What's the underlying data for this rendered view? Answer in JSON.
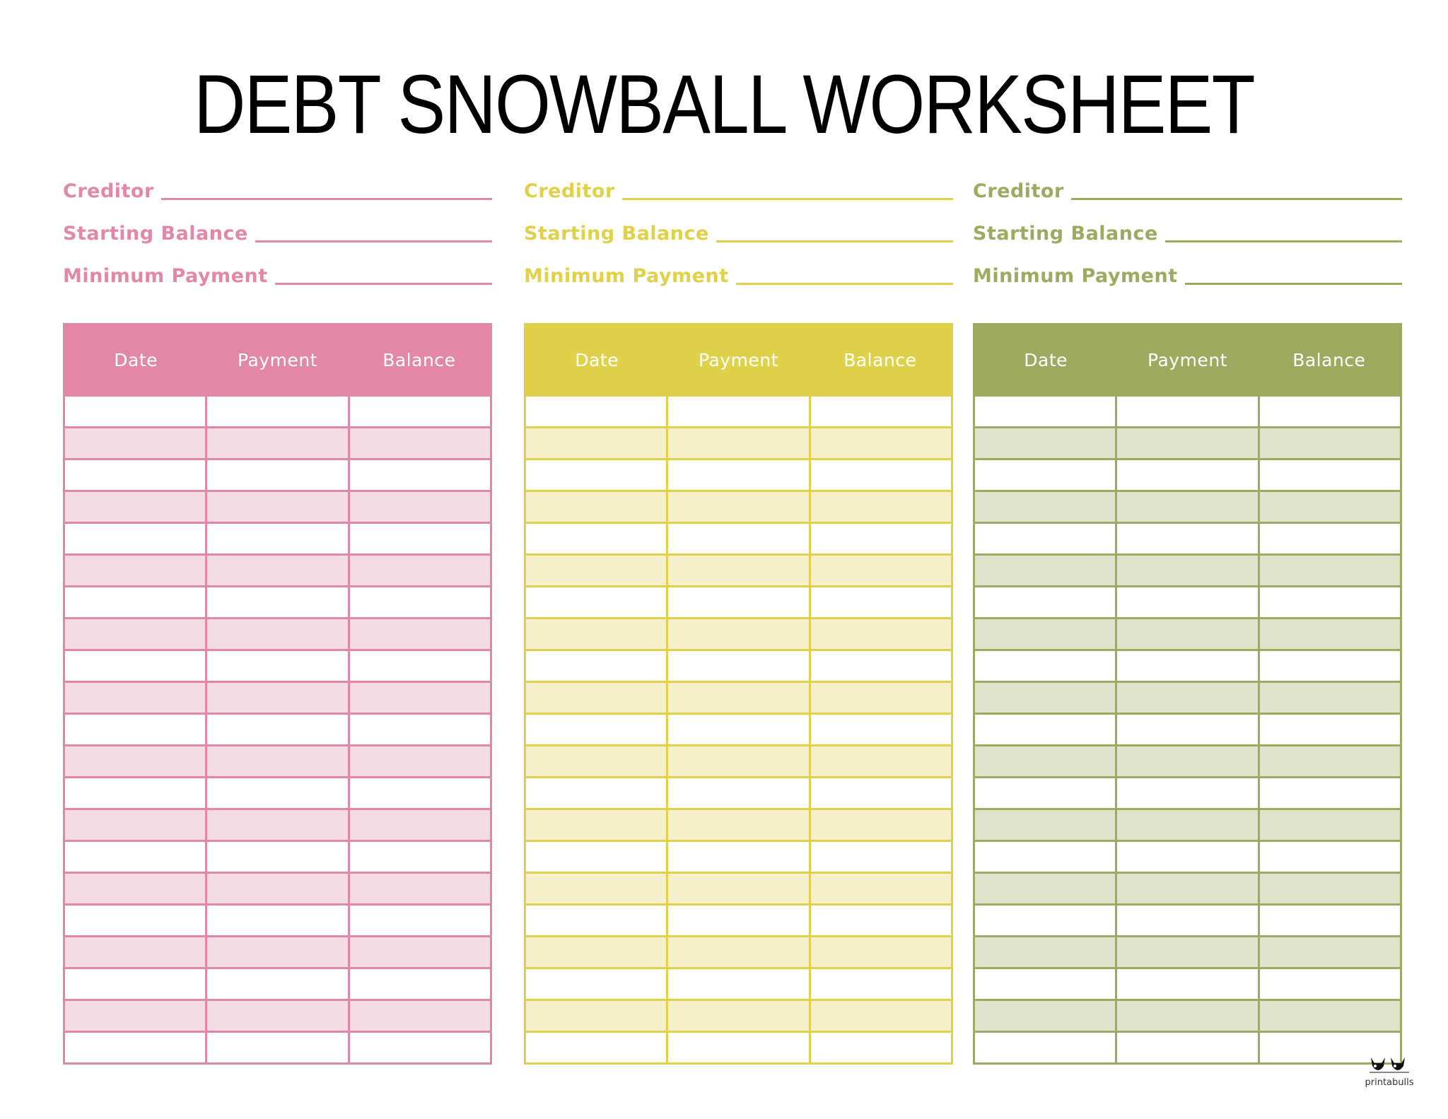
{
  "title": "DEBT SNOWBALL WORKSHEET",
  "panels": [
    {
      "color": "#e288a6",
      "shade": "#f5dbe3",
      "creditor": "Creditor",
      "starting_balance": "Starting Balance",
      "minimum_payment": "Minimum Payment",
      "columns": [
        "Date",
        "Payment",
        "Balance"
      ]
    },
    {
      "color": "#e0d14b",
      "shade": "#f5efcc",
      "creditor": "Creditor",
      "starting_balance": "Starting Balance",
      "minimum_payment": "Minimum Payment",
      "columns": [
        "Date",
        "Payment",
        "Balance"
      ]
    },
    {
      "color": "#9daa60",
      "shade": "#e0e3cc",
      "creditor": "Creditor",
      "starting_balance": "Starting Balance",
      "minimum_payment": "Minimum Payment",
      "columns": [
        "Date",
        "Payment",
        "Balance"
      ]
    }
  ],
  "logo": {
    "text": "printabulls",
    "icon": "bulldog-logo-icon"
  }
}
